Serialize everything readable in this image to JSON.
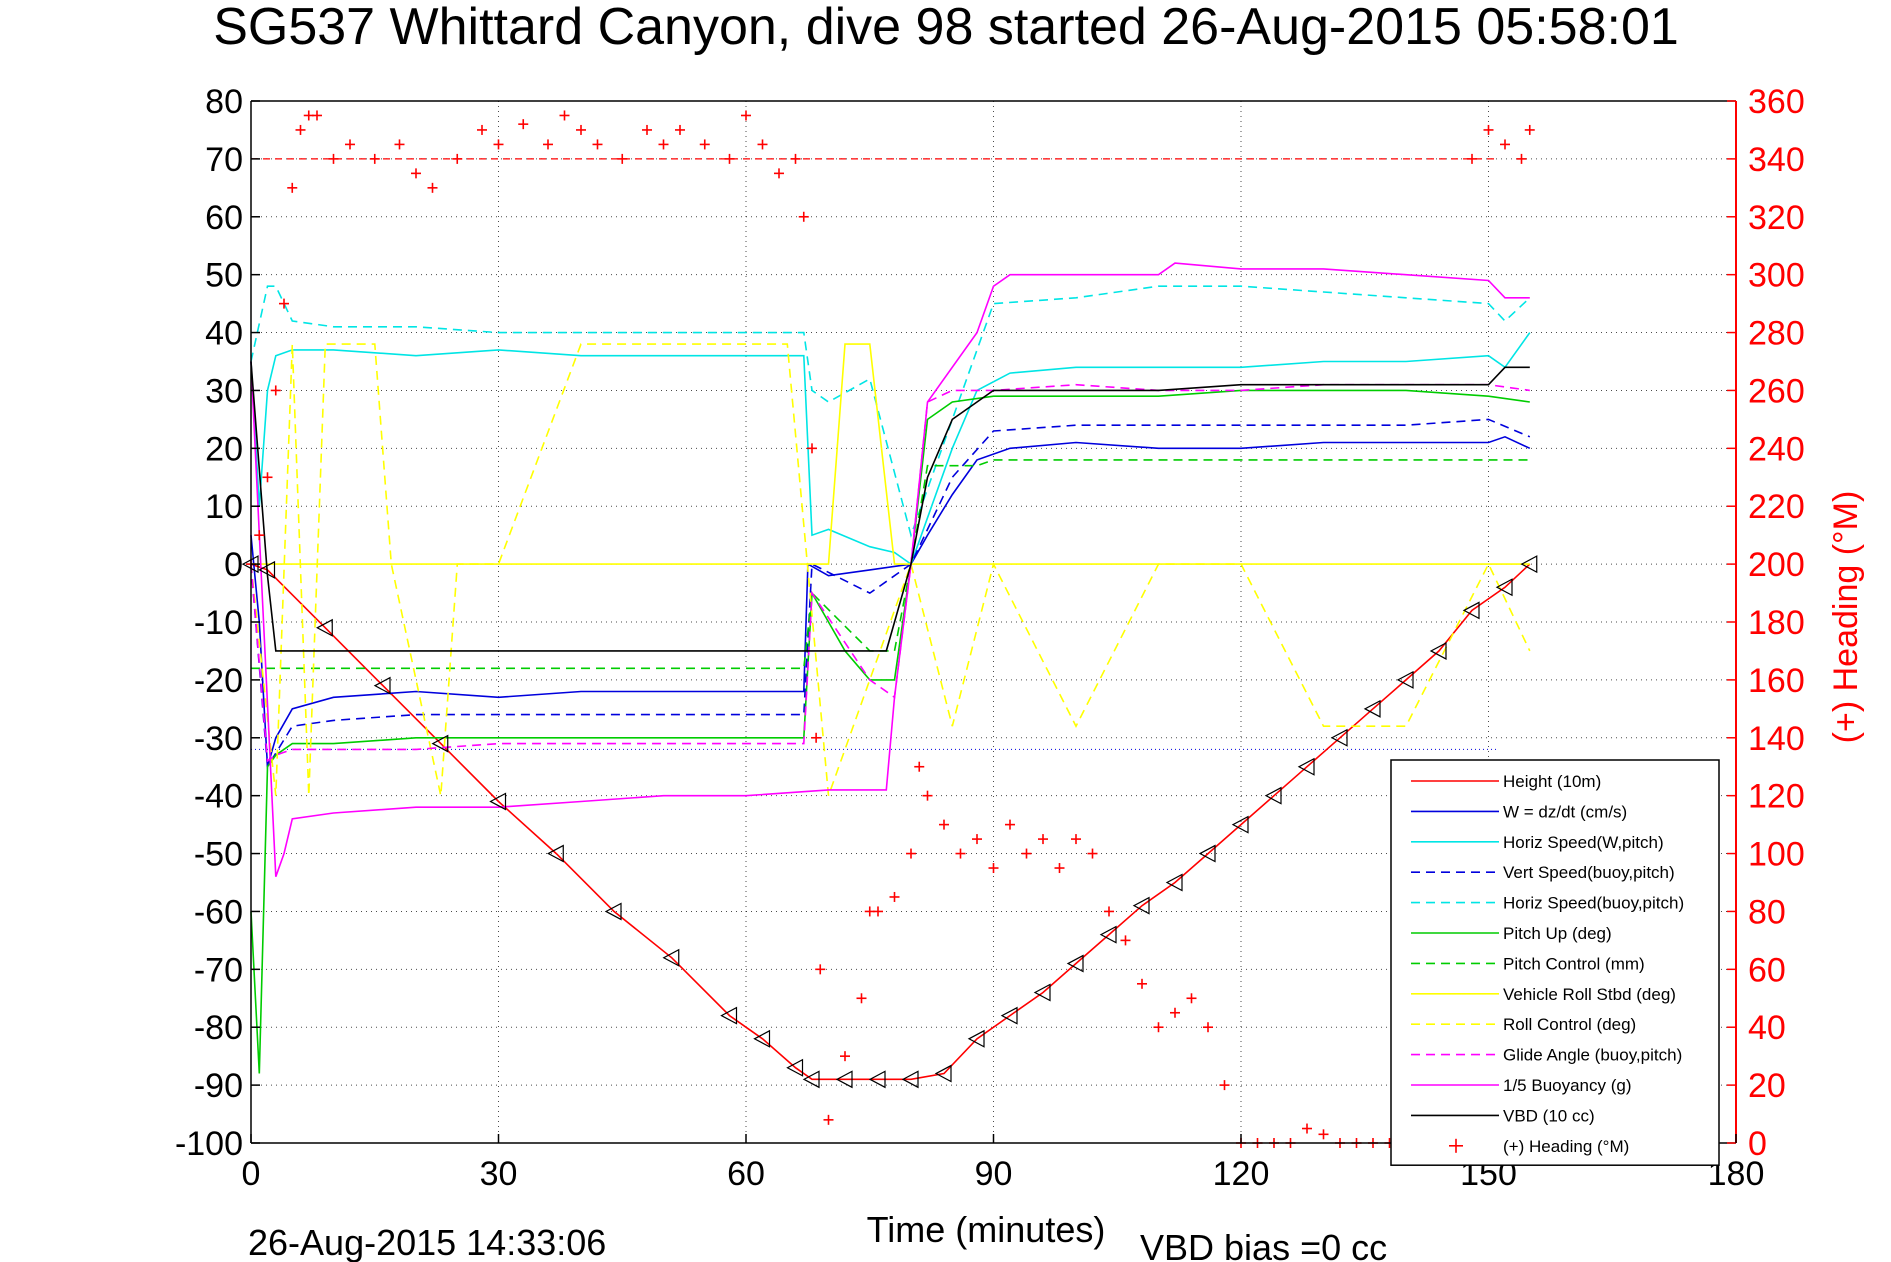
{
  "title": "SG537 Whittard Canyon, dive 98 started 26-Aug-2015 05:58:01",
  "footer": {
    "timestamp": "26-Aug-2015 14:33:06",
    "vbd_bias": "VBD bias =0 cc"
  },
  "colors": {
    "height": "#ff0000",
    "w": "#0000dd",
    "horiz_w": "#00e5e5",
    "pitch": "#00cc00",
    "roll": "#ffff00",
    "glide": "#ff00ff",
    "vbd": "#000000",
    "heading": "#ff0000"
  },
  "chart_data": {
    "type": "line",
    "title": "SG537 Whittard Canyon, dive 98 started 26-Aug-2015 05:58:01",
    "xlabel": "Time (minutes)",
    "ylabel": "",
    "y2label": "(+) Heading (°M)",
    "xlim": [
      0,
      180
    ],
    "ylim": [
      -100,
      80
    ],
    "y2lim": [
      0,
      360
    ],
    "xticks": [
      "0",
      "30",
      "60",
      "90",
      "120",
      "150",
      "180"
    ],
    "yticks": [
      "80",
      "70",
      "60",
      "50",
      "40",
      "30",
      "20",
      "10",
      "0",
      "-10",
      "-20",
      "-30",
      "-40",
      "-50",
      "-60",
      "-70",
      "-80",
      "-90",
      "-100"
    ],
    "y2ticks": [
      "360",
      "340",
      "320",
      "300",
      "280",
      "260",
      "240",
      "220",
      "200",
      "180",
      "160",
      "140",
      "120",
      "100",
      "80",
      "60",
      "40",
      "20",
      "0"
    ],
    "grid": true,
    "legend_position": "bottom-right",
    "series": [
      {
        "name": "Height (10m)",
        "key": "height",
        "style": "solid",
        "x": [
          0,
          2,
          9,
          16,
          23,
          30,
          37,
          44,
          51,
          58,
          62,
          66,
          68,
          72,
          76,
          80,
          84,
          88,
          92,
          96,
          100,
          104,
          108,
          112,
          116,
          120,
          124,
          128,
          132,
          136,
          140,
          144,
          148,
          152,
          155
        ],
        "y": [
          0,
          -1,
          -11,
          -21,
          -31,
          -41,
          -50,
          -60,
          -68,
          -78,
          -82,
          -87,
          -89,
          -89,
          -89,
          -89,
          -88,
          -82,
          -78,
          -74,
          -69,
          -64,
          -59,
          -55,
          -50,
          -45,
          -40,
          -35,
          -30,
          -25,
          -20,
          -15,
          -8,
          -4,
          0
        ]
      },
      {
        "name": "W = dz/dt (cm/s)",
        "key": "w",
        "style": "solid",
        "x": [
          0,
          1,
          2,
          3,
          5,
          10,
          20,
          30,
          40,
          50,
          60,
          67,
          67.5,
          70,
          75,
          80,
          82,
          85,
          88,
          92,
          100,
          110,
          120,
          130,
          140,
          150,
          152,
          155
        ],
        "y": [
          5,
          -10,
          -35,
          -30,
          -25,
          -23,
          -22,
          -23,
          -22,
          -22,
          -22,
          -22,
          0,
          -2,
          -1,
          0,
          5,
          12,
          18,
          20,
          21,
          20,
          20,
          21,
          21,
          21,
          22,
          20
        ]
      },
      {
        "name": "Horiz Speed(W,pitch)",
        "key": "horiz_w",
        "style": "solid",
        "x": [
          0,
          1,
          2,
          3,
          5,
          10,
          20,
          30,
          40,
          50,
          60,
          67,
          68,
          70,
          75,
          78,
          80,
          82,
          85,
          88,
          92,
          100,
          110,
          120,
          130,
          140,
          150,
          152,
          155
        ],
        "y": [
          35,
          10,
          30,
          36,
          37,
          37,
          36,
          37,
          36,
          36,
          36,
          36,
          5,
          6,
          3,
          2,
          0,
          8,
          20,
          30,
          33,
          34,
          34,
          34,
          35,
          35,
          36,
          34,
          40
        ]
      },
      {
        "name": "Vert Speed(buoy,pitch)",
        "key": "w",
        "style": "dashed",
        "x": [
          0,
          2,
          5,
          10,
          20,
          30,
          40,
          50,
          60,
          67,
          68,
          75,
          80,
          85,
          90,
          100,
          110,
          120,
          130,
          140,
          150,
          155
        ],
        "y": [
          0,
          -35,
          -28,
          -27,
          -26,
          -26,
          -26,
          -26,
          -26,
          -26,
          0,
          -5,
          0,
          15,
          23,
          24,
          24,
          24,
          24,
          24,
          25,
          22
        ]
      },
      {
        "name": "Horiz Speed(buoy,pitch)",
        "key": "horiz_w",
        "style": "dashed",
        "x": [
          0,
          2,
          3,
          5,
          10,
          20,
          30,
          40,
          50,
          60,
          67,
          68,
          70,
          75,
          80,
          85,
          90,
          100,
          110,
          120,
          130,
          140,
          150,
          152,
          155
        ],
        "y": [
          35,
          48,
          48,
          42,
          41,
          41,
          40,
          40,
          40,
          40,
          40,
          30,
          28,
          32,
          5,
          25,
          45,
          46,
          48,
          48,
          47,
          46,
          45,
          42,
          46
        ]
      },
      {
        "name": "Pitch Up (deg)",
        "key": "pitch",
        "style": "solid",
        "x": [
          0,
          1,
          2,
          3,
          5,
          10,
          20,
          30,
          40,
          50,
          60,
          67,
          68,
          72,
          75,
          78,
          80,
          82,
          85,
          90,
          100,
          110,
          120,
          130,
          140,
          150,
          155
        ],
        "y": [
          -60,
          -88,
          -35,
          -33,
          -31,
          -31,
          -30,
          -30,
          -30,
          -30,
          -30,
          -30,
          -5,
          -15,
          -20,
          -20,
          0,
          25,
          28,
          29,
          29,
          29,
          30,
          30,
          30,
          29,
          28
        ]
      },
      {
        "name": "Pitch Control (mm)",
        "key": "pitch",
        "style": "dashed",
        "x": [
          0,
          2,
          5,
          10,
          20,
          30,
          40,
          50,
          60,
          67,
          68,
          75,
          78,
          80,
          82,
          88,
          90,
          100,
          110,
          120,
          130,
          140,
          150,
          155
        ],
        "y": [
          -18,
          -18,
          -18,
          -18,
          -18,
          -18,
          -18,
          -18,
          -18,
          -18,
          -5,
          -15,
          -15,
          0,
          17,
          17,
          18,
          18,
          18,
          18,
          18,
          18,
          18,
          18
        ]
      },
      {
        "name": "Vehicle Roll Stbd (deg)",
        "key": "roll",
        "style": "solid",
        "x": [
          0,
          10,
          20,
          30,
          40,
          50,
          60,
          65,
          70,
          72,
          75,
          78,
          80,
          90,
          100,
          110,
          120,
          130,
          140,
          150,
          155
        ],
        "y": [
          0,
          0,
          0,
          0,
          0,
          0,
          0,
          0,
          0,
          38,
          38,
          0,
          0,
          0,
          0,
          0,
          0,
          0,
          0,
          0,
          0
        ]
      },
      {
        "name": "Roll Control (deg)",
        "key": "roll",
        "style": "dashed",
        "x": [
          0,
          3,
          5,
          7,
          9,
          15,
          17,
          23,
          25,
          30,
          40,
          50,
          60,
          65,
          70,
          80,
          85,
          90,
          100,
          110,
          120,
          130,
          140,
          150,
          155
        ],
        "y": [
          0,
          -40,
          38,
          -40,
          38,
          38,
          0,
          -40,
          0,
          0,
          38,
          38,
          38,
          38,
          -40,
          0,
          -28,
          0,
          -28,
          0,
          0,
          -28,
          -28,
          0,
          -15
        ]
      },
      {
        "name": "Glide Angle (buoy,pitch)",
        "key": "glide",
        "style": "dashed",
        "x": [
          0,
          2,
          3,
          5,
          10,
          20,
          30,
          40,
          50,
          60,
          67,
          68,
          75,
          78,
          80,
          82,
          85,
          90,
          100,
          110,
          120,
          130,
          140,
          150,
          155
        ],
        "y": [
          0,
          -34,
          -33,
          -32,
          -32,
          -32,
          -31,
          -31,
          -31,
          -31,
          -31,
          -5,
          -20,
          -23,
          0,
          28,
          30,
          30,
          31,
          30,
          30,
          31,
          31,
          31,
          30
        ]
      },
      {
        "name": "1/5 Buoyancy (g)",
        "key": "glide",
        "style": "solid",
        "x": [
          0,
          3,
          4,
          5,
          10,
          20,
          30,
          40,
          50,
          60,
          70,
          77,
          78,
          80,
          82,
          88,
          90,
          92,
          100,
          110,
          112,
          120,
          130,
          140,
          150,
          152,
          155
        ],
        "y": [
          35,
          -54,
          -50,
          -44,
          -43,
          -42,
          -42,
          -41,
          -40,
          -40,
          -39,
          -39,
          -23,
          0,
          28,
          40,
          48,
          50,
          50,
          50,
          52,
          51,
          51,
          50,
          49,
          46,
          46
        ]
      },
      {
        "name": "VBD (10 cc)",
        "key": "vbd",
        "style": "solid",
        "x": [
          0,
          2,
          3,
          10,
          20,
          30,
          40,
          50,
          60,
          67,
          68,
          75,
          77,
          80,
          82,
          85,
          88,
          90,
          100,
          110,
          120,
          130,
          140,
          150,
          152,
          155
        ],
        "y": [
          35,
          -2,
          -15,
          -15,
          -15,
          -15,
          -15,
          -15,
          -15,
          -15,
          -15,
          -15,
          -15,
          0,
          15,
          25,
          28,
          30,
          30,
          30,
          31,
          31,
          31,
          31,
          34,
          34
        ]
      },
      {
        "name": "(+) Heading (°M)",
        "key": "heading",
        "axis": "right",
        "style": "plus",
        "x": [
          0,
          1,
          2,
          3,
          4,
          5,
          6,
          7,
          8,
          10,
          12,
          15,
          18,
          20,
          22,
          25,
          28,
          30,
          33,
          36,
          38,
          40,
          42,
          45,
          48,
          50,
          52,
          55,
          58,
          60,
          62,
          64,
          66,
          67,
          68,
          68.5,
          69,
          70,
          72,
          74,
          75,
          76,
          78,
          80,
          81,
          82,
          84,
          86,
          88,
          90,
          92,
          94,
          96,
          98,
          100,
          102,
          104,
          106,
          108,
          110,
          112,
          114,
          116,
          118,
          120,
          122,
          124,
          126,
          128,
          130,
          132,
          134,
          136,
          138,
          140,
          142,
          145,
          148,
          150,
          152,
          154,
          155
        ],
        "y": [
          200,
          210,
          230,
          260,
          290,
          330,
          350,
          355,
          355,
          340,
          345,
          340,
          345,
          335,
          330,
          340,
          350,
          345,
          352,
          345,
          355,
          350,
          345,
          340,
          350,
          345,
          350,
          345,
          340,
          355,
          345,
          335,
          340,
          320,
          240,
          140,
          60,
          8,
          30,
          50,
          80,
          80,
          85,
          100,
          130,
          120,
          110,
          100,
          105,
          95,
          110,
          100,
          105,
          95,
          105,
          100,
          80,
          70,
          55,
          40,
          45,
          50,
          40,
          20,
          0,
          0,
          0,
          0,
          5,
          3,
          0,
          0,
          0,
          0,
          0,
          0,
          0,
          340,
          350,
          345,
          340,
          350
        ]
      }
    ]
  }
}
